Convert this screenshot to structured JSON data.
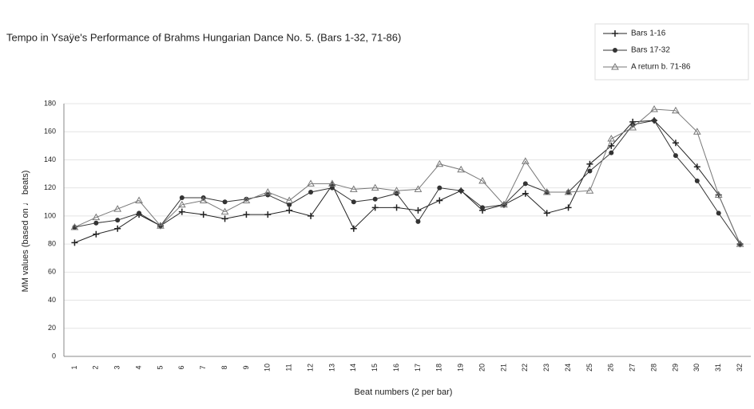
{
  "chart_data": {
    "type": "line",
    "title": "Tempo in Ysaÿe's Performance of Brahms Hungarian Dance No. 5. (Bars 1-32, 71-86)",
    "x_label": "Beat numbers (2 per bar)",
    "y_label": "MM values (based on ♩ beats)",
    "categories": [
      "1",
      "2",
      "3",
      "4",
      "5",
      "6",
      "7",
      "8",
      "9",
      "10",
      "11",
      "12",
      "13",
      "14",
      "15",
      "16",
      "17",
      "18",
      "19",
      "20",
      "21",
      "22",
      "23",
      "24",
      "25",
      "26",
      "27",
      "28",
      "29",
      "30",
      "31",
      "32"
    ],
    "series": [
      {
        "name": "Bars 1-16",
        "color": "#222222",
        "marker": "plus",
        "values": [
          81,
          87,
          91,
          101,
          93,
          103,
          101,
          98,
          101,
          101,
          104,
          100,
          122,
          91,
          106,
          106,
          104,
          111,
          118,
          104,
          108,
          116,
          102,
          106,
          137,
          150,
          167,
          168,
          152,
          135,
          115,
          80
        ]
      },
      {
        "name": "Bars 17-32",
        "color": "#333333",
        "marker": "circle",
        "values": [
          92,
          95,
          97,
          102,
          93,
          113,
          113,
          110,
          112,
          115,
          108,
          117,
          120,
          110,
          112,
          116,
          96,
          120,
          118,
          106,
          108,
          123,
          117,
          117,
          132,
          145,
          165,
          168,
          143,
          125,
          102,
          80
        ]
      },
      {
        "name": "A return b. 71-86",
        "color": "#777777",
        "marker": "triangle",
        "values": [
          92,
          99,
          105,
          111,
          93,
          108,
          111,
          103,
          111,
          117,
          111,
          123,
          123,
          119,
          120,
          118,
          119,
          137,
          133,
          125,
          108,
          139,
          117,
          117,
          118,
          155,
          163,
          176,
          175,
          160,
          115,
          80
        ]
      }
    ],
    "ylim": [
      0,
      180
    ],
    "yticks": [
      0,
      20,
      40,
      60,
      80,
      100,
      120,
      140,
      160,
      180
    ],
    "grid": true,
    "legend": "top-right"
  }
}
